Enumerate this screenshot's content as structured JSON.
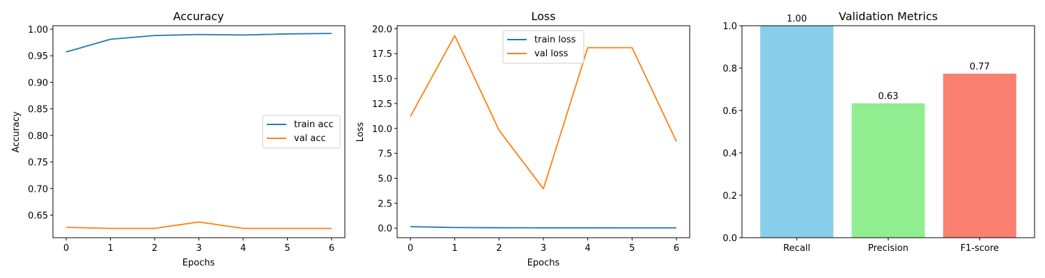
{
  "chart_data": [
    {
      "type": "line",
      "title": "Accuracy",
      "xlabel": "Epochs",
      "ylabel": "Accuracy",
      "x": [
        0,
        1,
        2,
        3,
        4,
        5,
        6
      ],
      "xticks": [
        "0",
        "1",
        "2",
        "3",
        "4",
        "5",
        "6"
      ],
      "xlim": [
        -0.3,
        6.3
      ],
      "ylim": [
        0.6075,
        1.0065
      ],
      "yticks": [
        "0.65",
        "0.70",
        "0.75",
        "0.80",
        "0.85",
        "0.90",
        "0.95",
        "1.00"
      ],
      "grid": false,
      "legend_position": "center-right",
      "series": [
        {
          "name": "train acc",
          "color": "#1f77b4",
          "values": [
            0.957,
            0.981,
            0.988,
            0.99,
            0.989,
            0.991,
            0.992
          ]
        },
        {
          "name": "val acc",
          "color": "#ff7f0e",
          "values": [
            0.627,
            0.625,
            0.625,
            0.637,
            0.625,
            0.625,
            0.625
          ]
        }
      ]
    },
    {
      "type": "line",
      "title": "Loss",
      "xlabel": "Epochs",
      "ylabel": "Loss",
      "x": [
        0,
        1,
        2,
        3,
        4,
        5,
        6
      ],
      "xticks": [
        "0",
        "1",
        "2",
        "3",
        "4",
        "5",
        "6"
      ],
      "xlim": [
        -0.3,
        6.3
      ],
      "ylim": [
        -0.96,
        20.3
      ],
      "yticks": [
        "0.0",
        "2.5",
        "5.0",
        "7.5",
        "10.0",
        "12.5",
        "15.0",
        "17.5",
        "20.0"
      ],
      "grid": false,
      "legend_position": "upper-center",
      "series": [
        {
          "name": "train loss",
          "color": "#1f77b4",
          "values": [
            0.15,
            0.06,
            0.04,
            0.03,
            0.03,
            0.02,
            0.02
          ]
        },
        {
          "name": "val loss",
          "color": "#ff7f0e",
          "values": [
            11.2,
            19.3,
            9.8,
            3.95,
            18.1,
            18.1,
            8.7
          ]
        }
      ]
    },
    {
      "type": "bar",
      "title": "Validation Metrics",
      "xlabel": "",
      "ylabel": "",
      "categories": [
        "Recall",
        "Precision",
        "F1-score"
      ],
      "values": [
        1.0,
        0.634,
        0.774
      ],
      "value_labels": [
        "1.00",
        "0.63",
        "0.77"
      ],
      "colors": [
        "#87ceeb",
        "#90ee90",
        "#fa8072"
      ],
      "ylim": [
        0,
        1.0
      ],
      "yticks": [
        "0.0",
        "0.2",
        "0.4",
        "0.6",
        "0.8",
        "1.0"
      ],
      "grid": false
    }
  ]
}
